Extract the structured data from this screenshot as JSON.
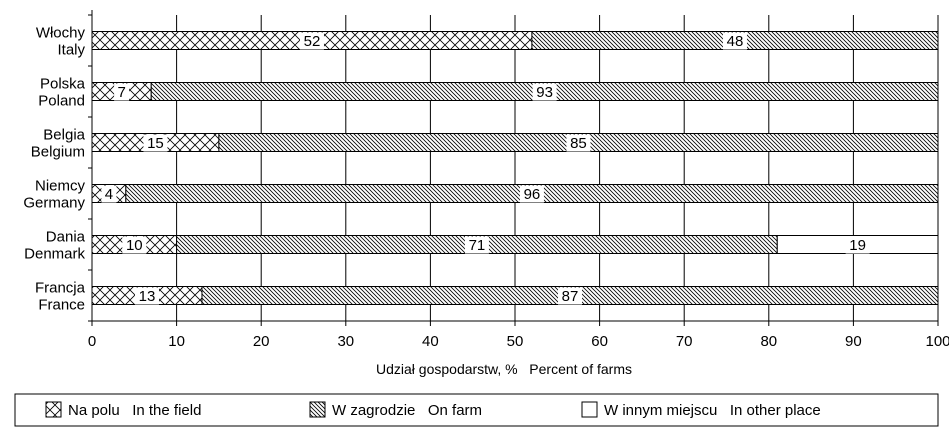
{
  "chart_data": {
    "type": "bar",
    "orientation": "horizontal",
    "stacked": true,
    "categories": [
      [
        "Włochy",
        "Italy"
      ],
      [
        "Polska",
        "Poland"
      ],
      [
        "Belgia",
        "Belgium"
      ],
      [
        "Niemcy",
        "Germany"
      ],
      [
        "Dania",
        "Denmark"
      ],
      [
        "Francja",
        "France"
      ]
    ],
    "series": [
      {
        "name": "Na polu   In the field",
        "pattern": "crosshatch",
        "values": [
          52,
          7,
          15,
          4,
          10,
          13
        ]
      },
      {
        "name": "W zagrodzie   On farm",
        "pattern": "diagonal",
        "values": [
          48,
          93,
          85,
          96,
          71,
          87
        ]
      },
      {
        "name": "W innym miejscu   In other place",
        "pattern": "none",
        "values": [
          0,
          0,
          0,
          0,
          19,
          0
        ]
      }
    ],
    "xlabel": "Udział gospodarstw, %   Percent of farms",
    "xlim": [
      0,
      100
    ],
    "xticks": [
      0,
      10,
      20,
      30,
      40,
      50,
      60,
      70,
      80,
      90,
      100
    ],
    "grid": true,
    "legend_position": "bottom"
  }
}
